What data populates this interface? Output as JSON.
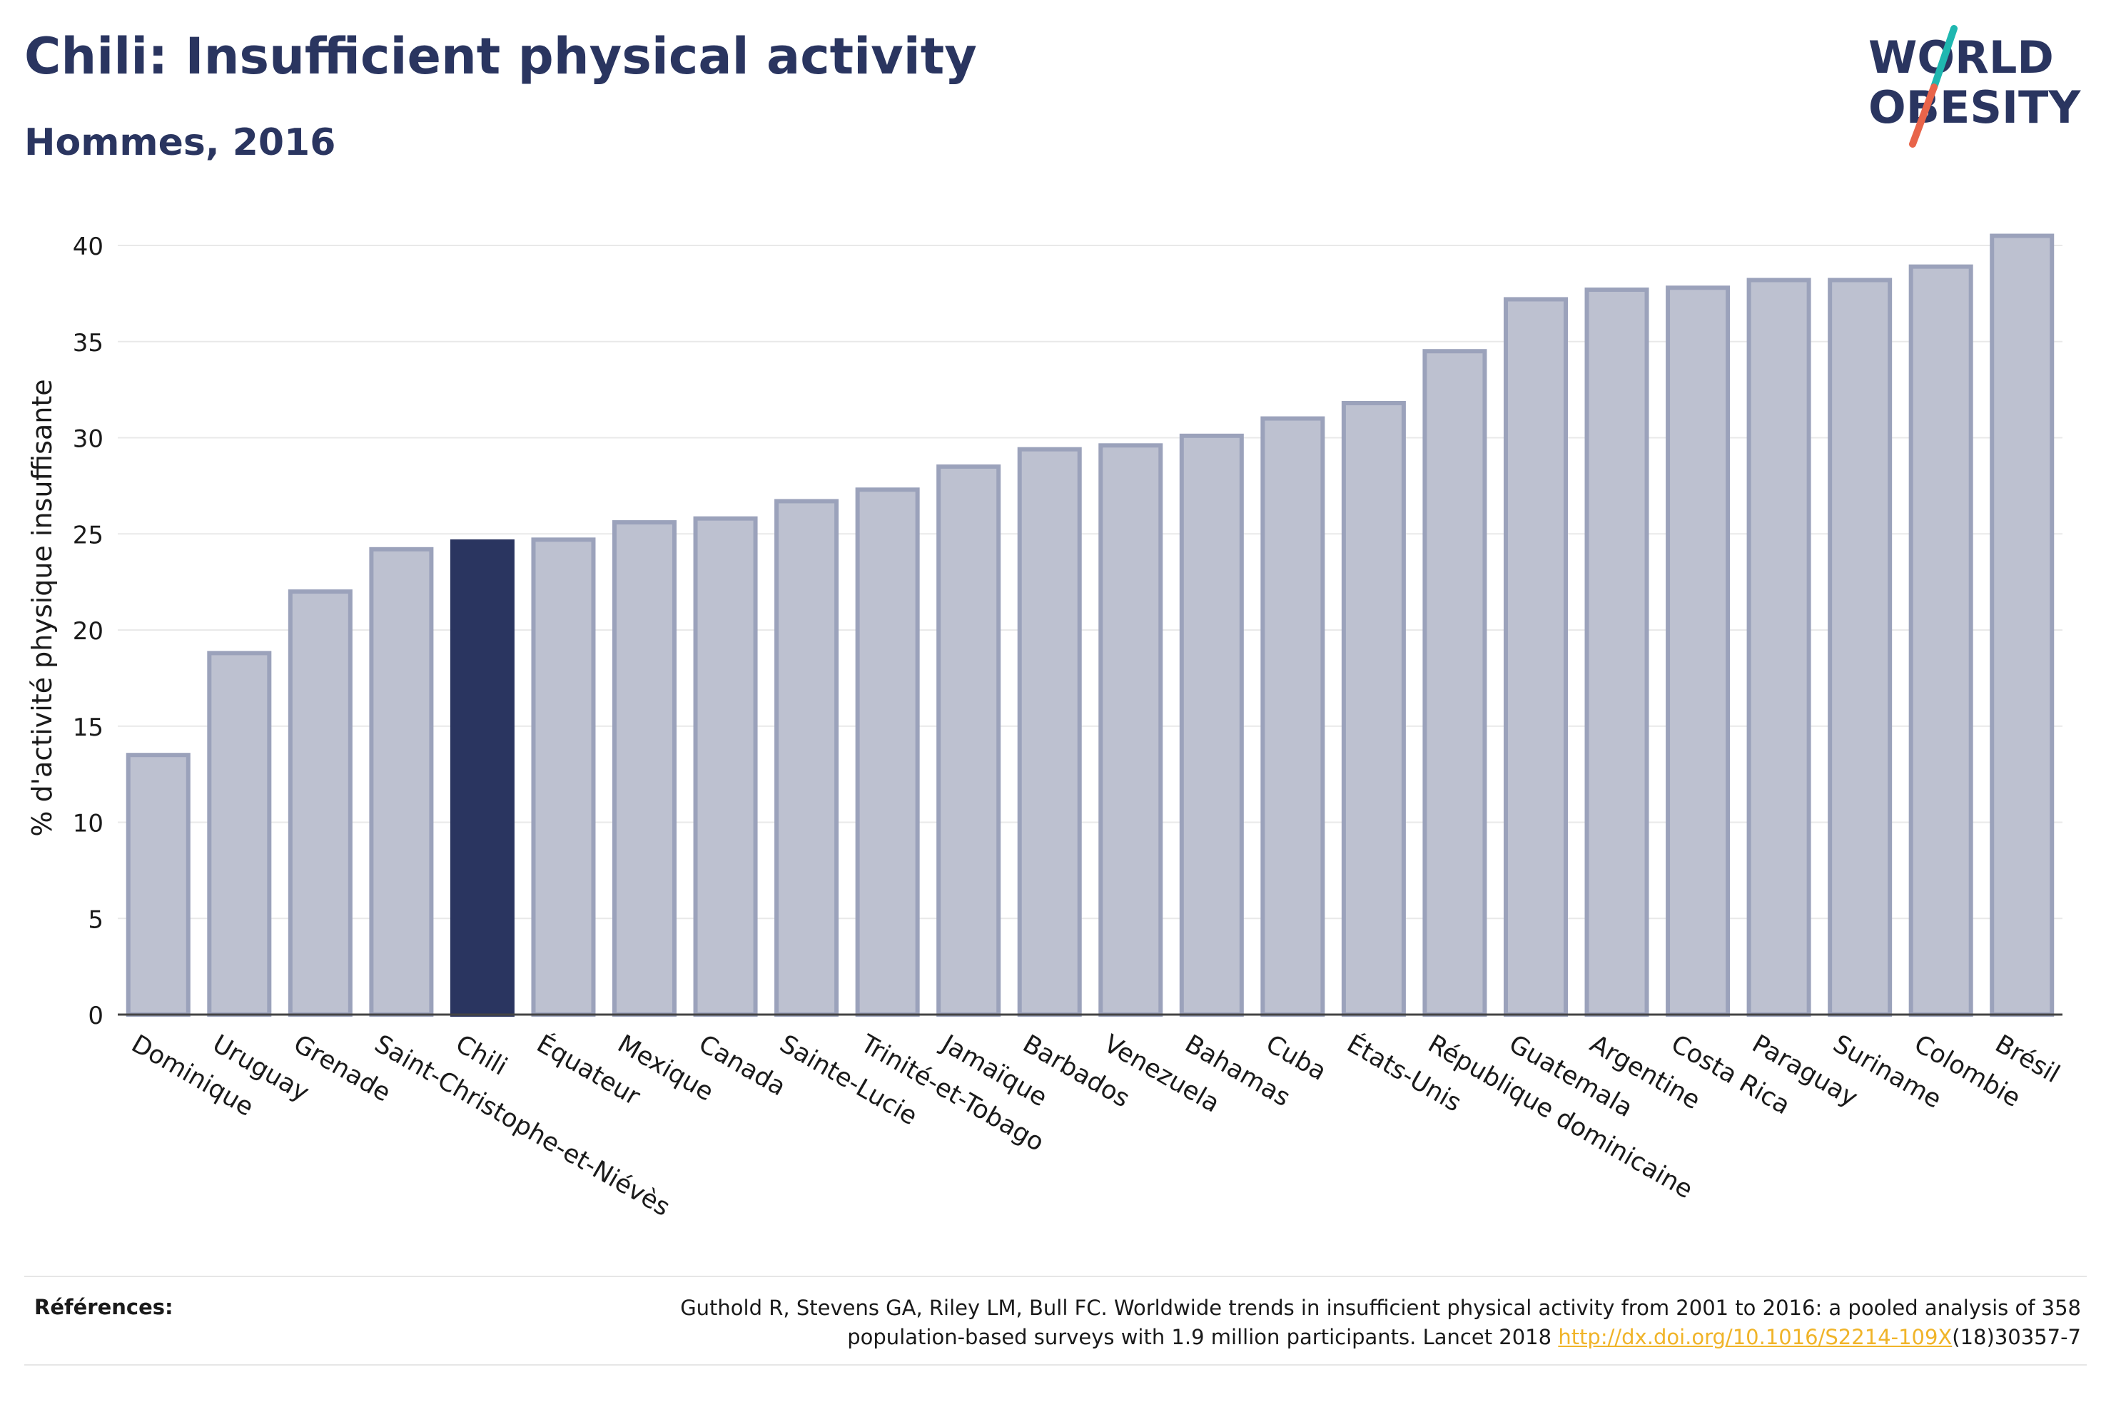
{
  "header": {
    "title": "Chili: Insufficient physical activity",
    "subtitle": "Hommes, 2016"
  },
  "logo": {
    "line1": "WORLD",
    "line2": "OBESITY",
    "text_color": "#2a3560",
    "slash_colors": [
      "#1fb7b0",
      "#e8644a"
    ]
  },
  "colors": {
    "bar": "#bdc1d0",
    "bar_border": "#9ba2bb",
    "highlight": "#2a3560",
    "axis_text": "#1a1a1a",
    "grid": "#e9e9e9"
  },
  "chart_data": {
    "type": "bar",
    "title": "Chili: Insufficient physical activity",
    "subtitle": "Hommes, 2016",
    "xlabel": "",
    "ylabel": "% d'activité physique insuffisante",
    "ylim": [
      0,
      42
    ],
    "yticks": [
      0,
      5,
      10,
      15,
      20,
      25,
      30,
      35,
      40
    ],
    "grid": true,
    "highlight": "Chili",
    "categories": [
      "Dominique",
      "Uruguay",
      "Grenade",
      "Saint-Christophe-et-Niévès",
      "Chili",
      "Équateur",
      "Mexique",
      "Canada",
      "Sainte-Lucie",
      "Trinité-et-Tobago",
      "Jamaïque",
      "Barbados",
      "Venezuela",
      "Bahamas",
      "Cuba",
      "États-Unis",
      "République dominicaine",
      "Guatemala",
      "Argentine",
      "Costa Rica",
      "Paraguay",
      "Suriname",
      "Colombie",
      "Brésil"
    ],
    "values": [
      13.5,
      18.8,
      22.0,
      24.2,
      24.6,
      24.7,
      25.6,
      25.8,
      26.7,
      27.3,
      28.5,
      29.4,
      29.6,
      30.1,
      31.0,
      31.8,
      34.5,
      37.2,
      37.7,
      37.8,
      38.2,
      38.2,
      38.9,
      40.5
    ]
  },
  "references": {
    "label": "Références:",
    "line1": "Guthold R, Stevens GA, Riley LM, Bull FC. Worldwide trends in insufficient physical activity from 2001 to 2016: a pooled analysis of 358",
    "line2_prefix": "population-based surveys with 1.9 million participants. Lancet 2018 ",
    "link": "http://dx.doi.org/10.1016/S2214-109X",
    "line2_suffix": "(18)30357-7"
  }
}
